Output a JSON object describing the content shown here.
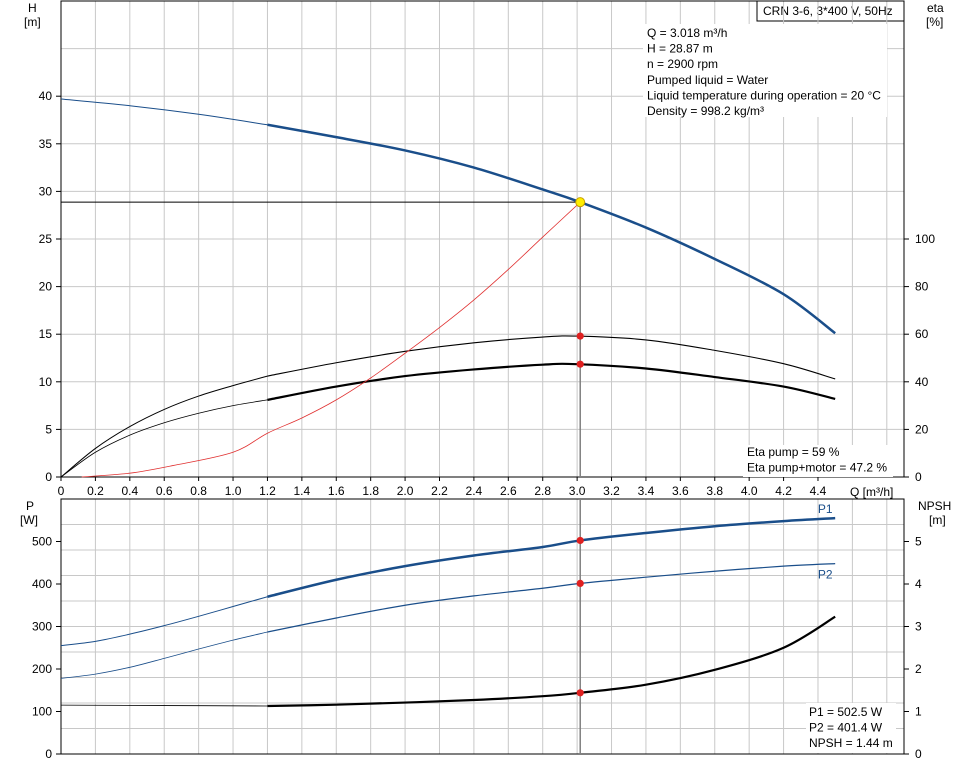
{
  "header": {
    "product": "CRN 3-6, 3*400 V, 50Hz"
  },
  "top_chart": {
    "left_axis": {
      "name": "H",
      "unit": "[m]"
    },
    "right_axis": {
      "name": "eta",
      "unit": "[%]"
    },
    "x_axis": {
      "unit": "Q [m³/h]"
    },
    "info_lines": [
      "Q = 3.018 m³/h",
      "H = 28.87 m",
      "n = 2900 rpm",
      "Pumped liquid = Water",
      "Liquid temperature during operation = 20 °C",
      "Density = 998.2 kg/m³"
    ],
    "result_lines": [
      "Eta pump = 59 %",
      "Eta pump+motor = 47.2 %"
    ]
  },
  "bottom_chart": {
    "left_axis": {
      "name": "P",
      "unit": "[W]"
    },
    "right_axis": {
      "name": "NPSH",
      "unit": "[m]"
    },
    "result_lines": [
      "P1 = 502.5 W",
      "P2 = 401.4 W",
      "NPSH = 1.44 m"
    ]
  },
  "chart_data": [
    {
      "type": "line",
      "x_ticks": [
        "0",
        "0.2",
        "0.4",
        "0.6",
        "0.8",
        "1.0",
        "1.2",
        "1.4",
        "1.6",
        "1.8",
        "2.0",
        "2.2",
        "2.4",
        "2.6",
        "2.8",
        "3.0",
        "3.2",
        "3.4",
        "3.6",
        "3.8",
        "4.0",
        "4.2",
        "4.4"
      ],
      "xlim": [
        0,
        4.9
      ],
      "ylim": [
        0,
        50
      ],
      "y_ticks": [
        "0",
        "5",
        "10",
        "15",
        "20",
        "25",
        "30",
        "35",
        "40"
      ],
      "y2lim": [
        0,
        200
      ],
      "y2_ticks": [
        "0",
        "20",
        "40",
        "60",
        "80",
        "100"
      ],
      "grid": true,
      "duty_point": {
        "x": 3.018,
        "y": 28.87
      },
      "series": [
        {
          "axis": "left",
          "color": "#1a4e8a",
          "width": 2.5,
          "points": [
            [
              1.2,
              37.0
            ],
            [
              1.6,
              35.7
            ],
            [
              2.0,
              34.3
            ],
            [
              2.4,
              32.5
            ],
            [
              2.8,
              30.2
            ],
            [
              3.018,
              28.87
            ],
            [
              3.4,
              26.2
            ],
            [
              3.8,
              22.9
            ],
            [
              4.2,
              19.2
            ],
            [
              4.5,
              15.1
            ]
          ]
        },
        {
          "axis": "left",
          "color": "#1a4e8a",
          "width": 1,
          "points": [
            [
              0,
              39.7
            ],
            [
              0.4,
              39.0
            ],
            [
              0.8,
              38.1
            ],
            [
              1.2,
              37.0
            ]
          ]
        },
        {
          "axis": "left",
          "color": "#000000",
          "width": 1.1,
          "points": [
            [
              1.2,
              10.6
            ],
            [
              1.6,
              12.0
            ],
            [
              2.0,
              13.2
            ],
            [
              2.4,
              14.1
            ],
            [
              2.8,
              14.7
            ],
            [
              3.0,
              14.8
            ],
            [
              3.4,
              14.4
            ],
            [
              3.8,
              13.3
            ],
            [
              4.2,
              11.9
            ],
            [
              4.5,
              10.3
            ]
          ]
        },
        {
          "axis": "left",
          "color": "#000000",
          "width": 1,
          "points": [
            [
              0,
              0
            ],
            [
              0.2,
              3.0
            ],
            [
              0.4,
              5.3
            ],
            [
              0.6,
              7.1
            ],
            [
              0.8,
              8.5
            ],
            [
              1.0,
              9.6
            ],
            [
              1.2,
              10.6
            ]
          ]
        },
        {
          "axis": "left",
          "color": "#000000",
          "width": 2.2,
          "points": [
            [
              1.2,
              8.1
            ],
            [
              1.6,
              9.5
            ],
            [
              2.0,
              10.6
            ],
            [
              2.4,
              11.3
            ],
            [
              2.8,
              11.8
            ],
            [
              3.0,
              11.85
            ],
            [
              3.4,
              11.4
            ],
            [
              3.8,
              10.5
            ],
            [
              4.2,
              9.5
            ],
            [
              4.5,
              8.2
            ]
          ]
        },
        {
          "axis": "left",
          "color": "#000000",
          "width": 0.8,
          "points": [
            [
              0,
              0
            ],
            [
              0.2,
              2.6
            ],
            [
              0.4,
              4.4
            ],
            [
              0.6,
              5.7
            ],
            [
              0.8,
              6.7
            ],
            [
              1.0,
              7.5
            ],
            [
              1.2,
              8.1
            ]
          ]
        },
        {
          "axis": "left",
          "color": "#e03030",
          "width": 0.8,
          "points": [
            [
              0.12,
              0
            ],
            [
              0.4,
              0.4
            ],
            [
              0.65,
              1.2
            ],
            [
              1.0,
              2.6
            ],
            [
              1.2,
              4.6
            ],
            [
              1.4,
              6.2
            ],
            [
              1.6,
              8.1
            ],
            [
              1.8,
              10.4
            ],
            [
              2.0,
              13.0
            ],
            [
              2.2,
              15.7
            ],
            [
              2.4,
              18.6
            ],
            [
              2.6,
              21.8
            ],
            [
              2.8,
              25.2
            ],
            [
              3.018,
              28.87
            ]
          ]
        }
      ],
      "markers": [
        {
          "x": 3.018,
          "y": 14.8,
          "color": "#e02020"
        },
        {
          "x": 3.018,
          "y": 11.85,
          "color": "#e02020"
        },
        {
          "x": 3.018,
          "y": 28.87,
          "color": "#ffee00"
        }
      ]
    },
    {
      "type": "line",
      "xlim": [
        0,
        4.9
      ],
      "ylim": [
        0,
        600
      ],
      "y_ticks": [
        "0",
        "100",
        "200",
        "300",
        "400",
        "500"
      ],
      "y2lim": [
        0,
        6
      ],
      "y2_ticks": [
        "0",
        "1",
        "2",
        "3",
        "4",
        "5"
      ],
      "grid": true,
      "series": [
        {
          "name": "P1",
          "axis": "left",
          "color": "#1a4e8a",
          "width": 2.5,
          "points": [
            [
              1.2,
              370
            ],
            [
              1.6,
              410
            ],
            [
              2.0,
              442
            ],
            [
              2.4,
              467
            ],
            [
              2.8,
              487
            ],
            [
              3.018,
              502.5
            ],
            [
              3.4,
              520
            ],
            [
              3.8,
              536
            ],
            [
              4.2,
              548
            ],
            [
              4.5,
              555
            ]
          ]
        },
        {
          "axis": "left",
          "color": "#1a4e8a",
          "width": 1,
          "points": [
            [
              0,
              255
            ],
            [
              0.2,
              265
            ],
            [
              0.4,
              282
            ],
            [
              0.6,
              302
            ],
            [
              0.8,
              324
            ],
            [
              1.0,
              347
            ],
            [
              1.2,
              370
            ]
          ]
        },
        {
          "name": "P2",
          "axis": "left",
          "color": "#1a4e8a",
          "width": 1.2,
          "points": [
            [
              1.2,
              287
            ],
            [
              1.6,
              320
            ],
            [
              2.0,
              350
            ],
            [
              2.4,
              372
            ],
            [
              2.8,
              390
            ],
            [
              3.018,
              401.4
            ],
            [
              3.4,
              416
            ],
            [
              3.8,
              430
            ],
            [
              4.2,
              442
            ],
            [
              4.5,
              448
            ]
          ]
        },
        {
          "axis": "left",
          "color": "#1a4e8a",
          "width": 0.8,
          "points": [
            [
              0,
              178
            ],
            [
              0.2,
              188
            ],
            [
              0.4,
              204
            ],
            [
              0.6,
              225
            ],
            [
              0.8,
              247
            ],
            [
              1.0,
              268
            ],
            [
              1.2,
              287
            ]
          ]
        },
        {
          "axis": "right",
          "color": "#000000",
          "width": 2.2,
          "points": [
            [
              1.2,
              1.13
            ],
            [
              1.6,
              1.16
            ],
            [
              2.0,
              1.21
            ],
            [
              2.4,
              1.27
            ],
            [
              2.8,
              1.36
            ],
            [
              3.018,
              1.44
            ],
            [
              3.4,
              1.63
            ],
            [
              3.8,
              1.98
            ],
            [
              4.2,
              2.5
            ],
            [
              4.5,
              3.23
            ]
          ]
        },
        {
          "axis": "right",
          "color": "#000000",
          "width": 0.8,
          "points": [
            [
              0,
              1.15
            ],
            [
              0.6,
              1.14
            ],
            [
              1.2,
              1.13
            ]
          ]
        }
      ],
      "markers": [
        {
          "x": 3.018,
          "y": 502.5,
          "axis": "left",
          "color": "#e02020"
        },
        {
          "x": 3.018,
          "y": 401.4,
          "axis": "left",
          "color": "#e02020"
        },
        {
          "x": 3.018,
          "y": 1.44,
          "axis": "right",
          "color": "#e02020"
        }
      ]
    }
  ]
}
